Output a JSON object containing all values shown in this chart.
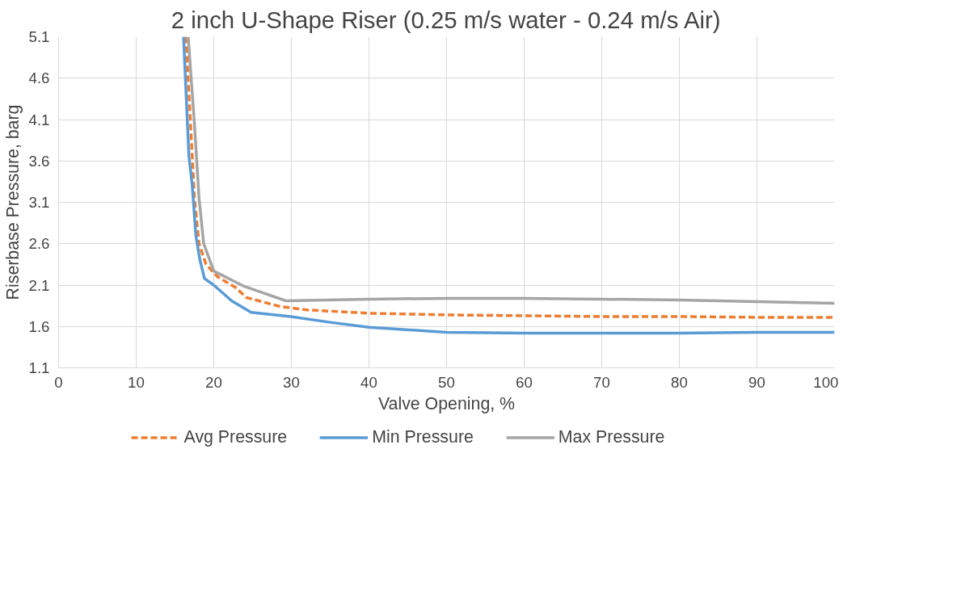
{
  "chart_data": {
    "type": "line",
    "title": "2 inch U-Shape Riser (0.25 m/s water - 0.24 m/s Air)",
    "xlabel": "Valve Opening, %",
    "ylabel": "Riserbase Pressure, barg",
    "xlim": [
      0,
      100
    ],
    "xticks": [
      0,
      10,
      20,
      30,
      40,
      50,
      60,
      70,
      80,
      90,
      100
    ],
    "ylim": [
      1.1,
      5.1
    ],
    "yticks": [
      1.1,
      1.6,
      2.1,
      2.6,
      3.1,
      3.6,
      4.1,
      4.6,
      5.1
    ],
    "grid": true,
    "legend": "bottom",
    "series": [
      {
        "name": "Avg Pressure",
        "color": "#ed7d31",
        "line_style": "dashed",
        "x": [
          16.4,
          17,
          17.5,
          18.1,
          19,
          20.5,
          22.8,
          24.2,
          28.6,
          32,
          40,
          50,
          60,
          70,
          80,
          90,
          100
        ],
        "values": [
          5.1,
          4.06,
          3.15,
          2.6,
          2.35,
          2.2,
          2.07,
          1.95,
          1.84,
          1.8,
          1.76,
          1.74,
          1.73,
          1.72,
          1.72,
          1.71,
          1.71
        ]
      },
      {
        "name": "Min Pressure",
        "color": "#5b9bd5",
        "line_style": "solid",
        "x": [
          16.1,
          16.8,
          17.2,
          17.7,
          18.2,
          18.8,
          20,
          22.3,
          24.8,
          29.9,
          35,
          40,
          50,
          60,
          70,
          80,
          90,
          100
        ],
        "values": [
          5.1,
          3.65,
          3.33,
          2.69,
          2.41,
          2.18,
          2.1,
          1.91,
          1.77,
          1.72,
          1.65,
          1.59,
          1.53,
          1.52,
          1.52,
          1.52,
          1.53,
          1.53
        ]
      },
      {
        "name": "Max Pressure",
        "color": "#a5a5a5",
        "line_style": "solid",
        "x": [
          16.7,
          17.5,
          18.1,
          18.7,
          20,
          23.8,
          25.9,
          29.3,
          40,
          50,
          60,
          70,
          80,
          90,
          100
        ],
        "values": [
          5.1,
          4.06,
          3.15,
          2.6,
          2.27,
          2.09,
          2.02,
          1.91,
          1.93,
          1.94,
          1.94,
          1.93,
          1.92,
          1.9,
          1.88
        ]
      }
    ]
  }
}
